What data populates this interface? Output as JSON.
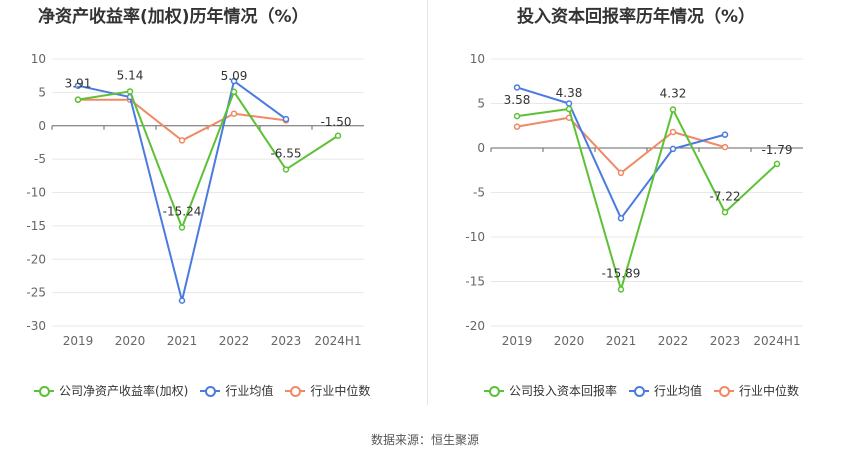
{
  "source_label": "数据来源：恒生聚源",
  "colors": {
    "company": "#5cc135",
    "industry_avg": "#4a7be0",
    "industry_median": "#f08a65"
  },
  "chart_data": [
    {
      "type": "line",
      "title": "净资产收益率(加权)历年情况（%）",
      "categories": [
        "2019",
        "2020",
        "2021",
        "2022",
        "2023",
        "2024H1"
      ],
      "ylim": [
        -30,
        10
      ],
      "yticks": [
        10,
        5,
        0,
        -5,
        -10,
        -15,
        -20,
        -25,
        -30
      ],
      "grid": true,
      "legend_position": "bottom",
      "series": [
        {
          "name": "公司净资产收益率(加权)",
          "color": "#5cc135",
          "values": [
            3.91,
            5.14,
            -15.24,
            5.09,
            -6.55,
            -1.5
          ],
          "labels": [
            "3.91",
            "5.14",
            "-15.24",
            "5.09",
            "-6.55",
            "-1.50"
          ]
        },
        {
          "name": "行业均值",
          "color": "#4a7be0",
          "values": [
            6.0,
            4.3,
            -26.2,
            6.7,
            1.0,
            null
          ]
        },
        {
          "name": "行业中位数",
          "color": "#f08a65",
          "values": [
            3.9,
            3.9,
            -2.2,
            1.8,
            0.8,
            null
          ]
        }
      ]
    },
    {
      "type": "line",
      "title": "投入资本回报率历年情况（%）",
      "categories": [
        "2019",
        "2020",
        "2021",
        "2022",
        "2023",
        "2024H1"
      ],
      "ylim": [
        -20,
        10
      ],
      "yticks": [
        10,
        5,
        0,
        -5,
        -10,
        -15,
        -20
      ],
      "grid": true,
      "legend_position": "bottom",
      "series": [
        {
          "name": "公司投入资本回报率",
          "color": "#5cc135",
          "values": [
            3.58,
            4.38,
            -15.89,
            4.32,
            -7.22,
            -1.79
          ],
          "labels": [
            "3.58",
            "4.38",
            "-15.89",
            "4.32",
            "-7.22",
            "-1.79"
          ]
        },
        {
          "name": "行业均值",
          "color": "#4a7be0",
          "values": [
            6.8,
            5.0,
            -7.9,
            -0.1,
            1.5,
            null
          ]
        },
        {
          "name": "行业中位数",
          "color": "#f08a65",
          "values": [
            2.4,
            3.4,
            -2.8,
            1.8,
            0.1,
            null
          ]
        }
      ]
    }
  ]
}
